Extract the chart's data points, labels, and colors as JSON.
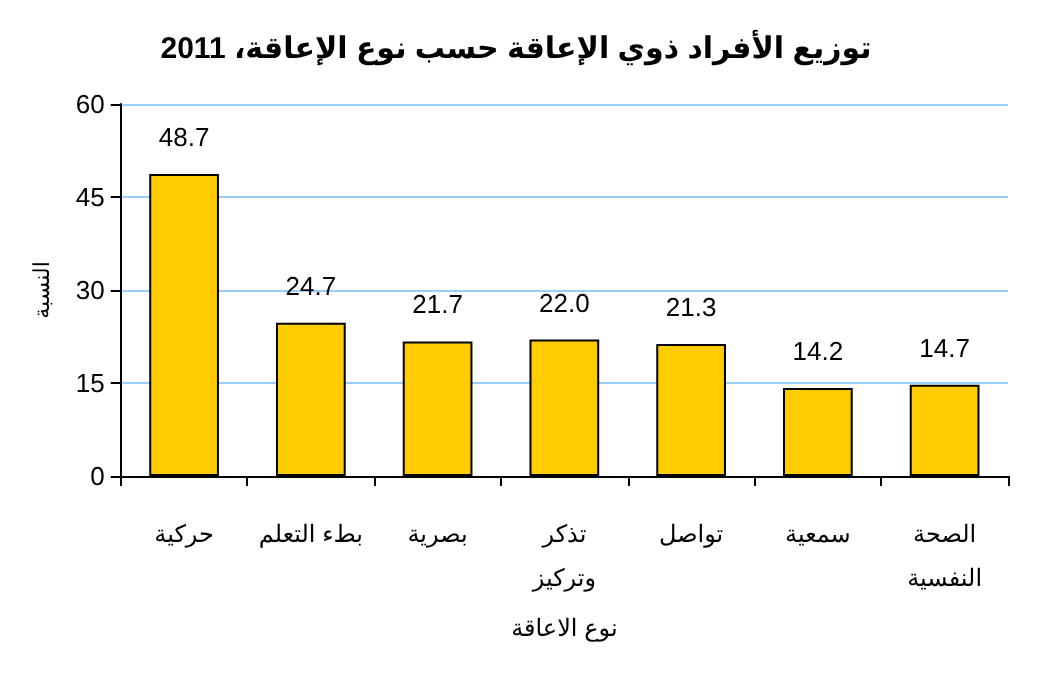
{
  "chart_data": {
    "type": "bar",
    "title": "توزيع الأفراد ذوي الإعاقة حسب نوع الإعاقة، 2011",
    "xlabel": "نوع الاعاقة",
    "ylabel": "النسبة",
    "categories": [
      "حركية",
      "بطء التعلم",
      "بصرية",
      "تذكر وتركيز",
      "تواصل",
      "سمعية",
      "الصحة النفسية"
    ],
    "values": [
      48.7,
      24.7,
      21.7,
      22.0,
      21.3,
      14.2,
      14.7
    ],
    "value_labels": [
      "48.7",
      "24.7",
      "21.7",
      "22.0",
      "21.3",
      "14.2",
      "14.7"
    ],
    "color": "#ffcc00",
    "ylim": [
      0,
      60
    ],
    "yticks": [
      0,
      15,
      30,
      45,
      60
    ],
    "grid": "y"
  }
}
